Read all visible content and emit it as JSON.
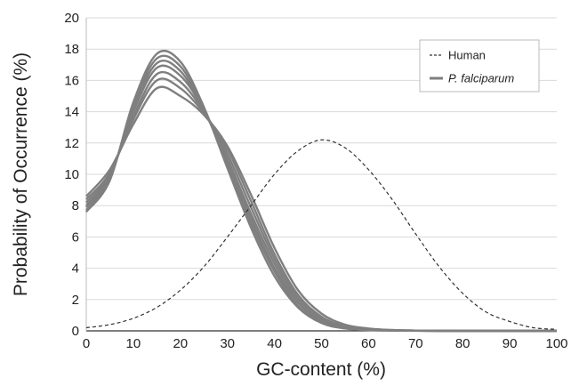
{
  "chart_data": {
    "type": "line",
    "xlabel": "GC-content (%)",
    "ylabel": "Probability of Occurrence (%)",
    "xlim": [
      0,
      100
    ],
    "ylim": [
      0,
      20
    ],
    "x_ticks": [
      "0",
      "10",
      "20",
      "30",
      "40",
      "50",
      "60",
      "70",
      "80",
      "90",
      "100"
    ],
    "y_ticks": [
      "0",
      "2",
      "4",
      "6",
      "8",
      "10",
      "12",
      "14",
      "16",
      "18",
      "20"
    ],
    "grid": "horizontal",
    "legend": {
      "placement": "top-right",
      "entries": [
        {
          "label": "Human",
          "style": "dashed",
          "color": "#333333"
        },
        {
          "label": "P. falciparum",
          "style": "solid",
          "color": "#7f7f7f"
        }
      ]
    },
    "x": [
      0,
      5,
      10,
      15,
      20,
      25,
      30,
      35,
      40,
      45,
      50,
      55,
      60,
      65,
      70,
      75,
      80,
      85,
      90,
      95,
      100
    ],
    "series": [
      {
        "name": "Human",
        "values": [
          0.2,
          0.4,
          0.8,
          1.5,
          2.6,
          4.1,
          6.0,
          8.0,
          10.0,
          11.5,
          12.2,
          11.7,
          10.3,
          8.4,
          6.2,
          4.1,
          2.4,
          1.2,
          0.6,
          0.2,
          0.1
        ]
      },
      {
        "name": "P. falciparum",
        "values": [
          8.6,
          10.3,
          13.2,
          15.5,
          15.0,
          13.8,
          11.8,
          8.7,
          5.3,
          2.6,
          1.1,
          0.4,
          0.15,
          0.05,
          0.02,
          0.01,
          0,
          0,
          0,
          0,
          0
        ]
      },
      {
        "name": "P. falciparum",
        "values": [
          8.4,
          10.1,
          13.5,
          16.0,
          15.5,
          13.9,
          11.6,
          8.3,
          4.9,
          2.3,
          0.9,
          0.3,
          0.1,
          0.05,
          0.02,
          0.01,
          0,
          0,
          0,
          0,
          0
        ]
      },
      {
        "name": "P. falciparum",
        "values": [
          8.2,
          10.0,
          13.7,
          16.4,
          15.9,
          14.0,
          11.3,
          7.9,
          4.6,
          2.1,
          0.8,
          0.3,
          0.1,
          0.04,
          0.02,
          0.01,
          0,
          0,
          0,
          0,
          0
        ]
      },
      {
        "name": "P. falciparum",
        "values": [
          8.0,
          9.9,
          14.0,
          16.8,
          16.3,
          14.1,
          11.0,
          7.5,
          4.3,
          1.9,
          0.7,
          0.25,
          0.08,
          0.03,
          0.01,
          0,
          0,
          0,
          0,
          0,
          0
        ]
      },
      {
        "name": "P. falciparum",
        "values": [
          7.9,
          9.8,
          14.2,
          17.1,
          16.6,
          14.1,
          10.8,
          7.2,
          4.0,
          1.8,
          0.65,
          0.2,
          0.07,
          0.03,
          0.01,
          0,
          0,
          0,
          0,
          0,
          0
        ]
      },
      {
        "name": "P. falciparum",
        "values": [
          7.7,
          9.7,
          14.4,
          17.4,
          16.9,
          14.2,
          10.6,
          6.9,
          3.8,
          1.6,
          0.6,
          0.2,
          0.06,
          0.02,
          0.01,
          0,
          0,
          0,
          0,
          0,
          0
        ]
      },
      {
        "name": "P. falciparum",
        "values": [
          7.6,
          9.6,
          14.6,
          17.7,
          17.2,
          14.3,
          10.4,
          6.6,
          3.5,
          1.5,
          0.5,
          0.15,
          0.05,
          0.02,
          0.01,
          0,
          0,
          0,
          0,
          0,
          0
        ]
      }
    ]
  }
}
